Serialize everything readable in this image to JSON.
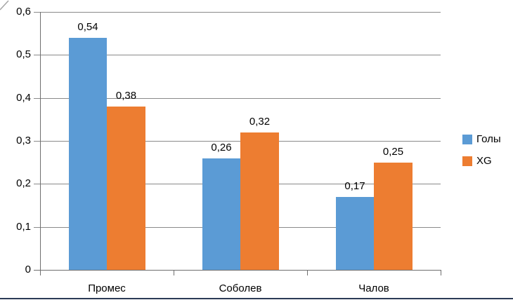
{
  "chart_data": {
    "type": "bar",
    "title": "",
    "xlabel": "",
    "ylabel": "",
    "categories": [
      "Промес",
      "Соболев",
      "Чалов"
    ],
    "series": [
      {
        "name": "Голы",
        "color": "#5B9BD5",
        "values": [
          0.54,
          0.26,
          0.17
        ],
        "data_labels": [
          "0,54",
          "0,26",
          "0,17"
        ]
      },
      {
        "name": "XG",
        "color": "#ED7D31",
        "values": [
          0.38,
          0.32,
          0.25
        ],
        "data_labels": [
          "0,38",
          "0,32",
          "0,25"
        ]
      }
    ],
    "y_axis": {
      "min": 0,
      "max": 0.6,
      "step": 0.1,
      "tick_labels": [
        "0",
        "0,1",
        "0,2",
        "0,3",
        "0,4",
        "0,5",
        "0,6"
      ]
    },
    "x_axis": {
      "tick_labels": [
        "Промес",
        "Соболев",
        "Чалов"
      ]
    },
    "legend": {
      "position": "right"
    },
    "grid": true,
    "gridline_color": "#8A8A8A",
    "axis_color": "#6F6F6F",
    "text_color": "#000000"
  },
  "page": {
    "background": "#FFFFFF",
    "bottom_border_color": "#2B3A55",
    "corner_line_color": "#A6A6A6"
  }
}
